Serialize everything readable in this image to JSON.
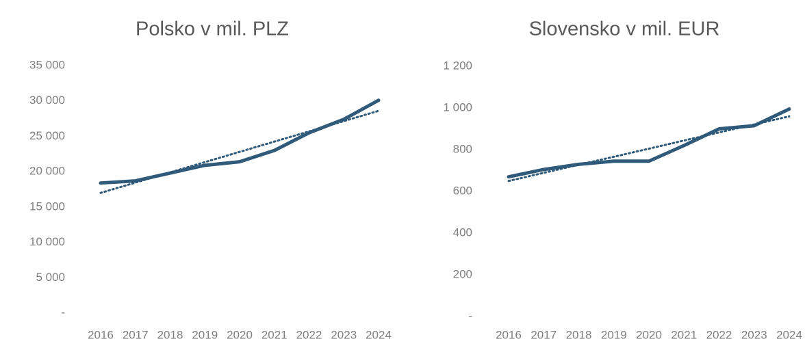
{
  "chart_data": [
    {
      "type": "line",
      "title": "Polsko v mil. PLZ",
      "categories": [
        "2016",
        "2017",
        "2018",
        "2019",
        "2020",
        "2021",
        "2022",
        "2023",
        "2024"
      ],
      "series": [
        {
          "color": "#2f5a7a",
          "values": [
            18400,
            18700,
            19800,
            20900,
            21400,
            23000,
            25500,
            27400,
            30100
          ]
        },
        {
          "color": "#2f5a7a",
          "style": "dotted",
          "values": [
            17000,
            18450,
            19900,
            21350,
            22800,
            24250,
            25700,
            27150,
            28600
          ]
        }
      ],
      "ylim": [
        0,
        35000
      ],
      "yticks": [
        {
          "value": 0,
          "label": "-"
        },
        {
          "value": 5000,
          "label": "5 000"
        },
        {
          "value": 10000,
          "label": "10 000"
        },
        {
          "value": 15000,
          "label": "15 000"
        },
        {
          "value": 20000,
          "label": "20 000"
        },
        {
          "value": 25000,
          "label": "25 000"
        },
        {
          "value": 30000,
          "label": "30 000"
        },
        {
          "value": 35000,
          "label": "35 000"
        }
      ]
    },
    {
      "type": "line",
      "title": "Slovensko v mil. EUR",
      "categories": [
        "2016",
        "2017",
        "2018",
        "2019",
        "2020",
        "2021",
        "2022",
        "2023",
        "2024"
      ],
      "series": [
        {
          "color": "#2f5a7a",
          "values": [
            670,
            705,
            730,
            745,
            745,
            820,
            900,
            915,
            995
          ]
        },
        {
          "color": "#2f5a7a",
          "style": "dotted",
          "values": [
            650,
            689,
            728,
            766,
            805,
            844,
            883,
            921,
            960
          ]
        }
      ],
      "ylim": [
        0,
        1200
      ],
      "yticks": [
        {
          "value": 0,
          "label": "-"
        },
        200,
        400,
        600,
        800,
        {
          "value": 1000,
          "label": "1 000"
        },
        {
          "value": 1200,
          "label": "1 200"
        }
      ]
    }
  ]
}
